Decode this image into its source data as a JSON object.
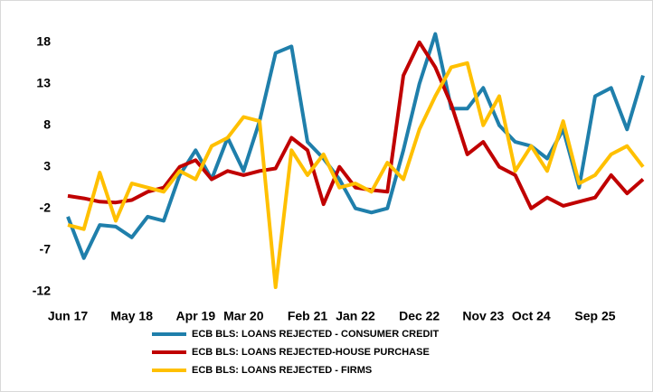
{
  "chart_data": {
    "type": "line",
    "categories": [
      "Jun 17",
      null,
      null,
      null,
      "May 18",
      null,
      null,
      null,
      "Apr 19",
      null,
      null,
      "Mar 20",
      null,
      null,
      null,
      "Feb 21",
      null,
      null,
      "Jan 22",
      null,
      null,
      null,
      "Dec 22",
      null,
      null,
      null,
      "Nov 23",
      null,
      null,
      "Oct 24",
      null,
      null,
      null,
      "Sep 25",
      null,
      null,
      null
    ],
    "series": [
      {
        "name": "ECB BLS: LOANS REJECTED - CONSUMER CREDIT",
        "color": "#1f7fab",
        "values": [
          -3,
          -8,
          -4,
          -4.2,
          -5.5,
          -3,
          -3.5,
          2,
          5,
          1.5,
          6.5,
          2.5,
          8.5,
          16.7,
          17.5,
          6,
          4,
          1.5,
          -2,
          -2.5,
          -2,
          5,
          13,
          19,
          10,
          10,
          12.5,
          8,
          6,
          5.5,
          4,
          7.5,
          0.5,
          11.5,
          12.5,
          7.5,
          14
        ]
      },
      {
        "name": "ECB BLS: LOANS REJECTED-HOUSE PURCHASE",
        "color": "#c00000",
        "values": [
          -0.5,
          -0.8,
          -1.2,
          -1.3,
          -1,
          0,
          0.5,
          3,
          3.8,
          1.5,
          2.5,
          2,
          2.5,
          2.8,
          6.5,
          5,
          -1.5,
          3,
          0.5,
          0.2,
          0,
          14,
          18,
          15,
          10.5,
          4.5,
          6,
          3,
          2,
          -2,
          -0.7,
          -1.7,
          -1.2,
          -0.7,
          2,
          -0.2,
          1.5
        ]
      },
      {
        "name": "ECB BLS: LOANS REJECTED - FIRMS",
        "color": "#ffc000",
        "values": [
          -4,
          -4.5,
          2.3,
          -3.5,
          1,
          0.5,
          0,
          2.5,
          1.5,
          5.5,
          6.5,
          9,
          8.5,
          -11.5,
          5,
          2,
          4.5,
          0.5,
          1,
          0,
          3.5,
          1.5,
          7.5,
          11.5,
          15,
          15.5,
          8,
          11.5,
          2.5,
          5.5,
          2.5,
          8.5,
          1,
          2,
          4.5,
          5.5,
          3
        ]
      }
    ],
    "ylim": [
      -14,
      22
    ],
    "yticks": [
      -12,
      -7,
      -2,
      3,
      8,
      13,
      18
    ],
    "grid": false,
    "legend": "bottom"
  }
}
